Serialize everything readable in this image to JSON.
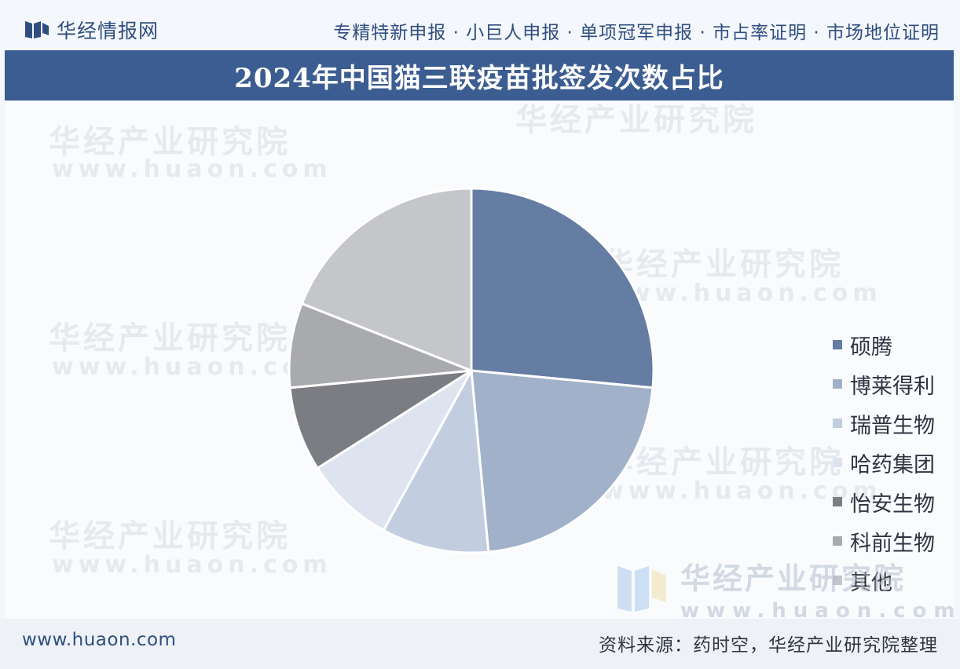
{
  "header": {
    "brand_name": "华经情报网",
    "services": "专精特新申报 · 小巨人申报 · 单项冠军申报 · 市占率证明 · 市场地位证明"
  },
  "watermark": {
    "cn": "华经产业研究院",
    "en": "www.huaon.com"
  },
  "footer": {
    "url": "www.huaon.com",
    "source": "资料来源：药时空，华经产业研究院整理"
  },
  "colors": {
    "title_bar": "#3c5d91",
    "brand": "#2f4e7f"
  },
  "chart_data": {
    "type": "pie",
    "title": "2024年中国猫三联疫苗批签发次数占比",
    "start_angle_deg": 90,
    "direction": "clockwise",
    "legend_position": "right",
    "series": [
      {
        "name": "硕腾",
        "value": 26.5,
        "color": "#657ca3"
      },
      {
        "name": "博莱得利",
        "value": 22.0,
        "color": "#a1b1ca"
      },
      {
        "name": "瑞普生物",
        "value": 9.5,
        "color": "#c2cde0"
      },
      {
        "name": "哈药集团",
        "value": 8.0,
        "color": "#dde4ef"
      },
      {
        "name": "怡安生物",
        "value": 7.5,
        "color": "#7b7d82"
      },
      {
        "name": "科前生物",
        "value": 7.5,
        "color": "#a8aaae"
      },
      {
        "name": "其他",
        "value": 19.0,
        "color": "#c4c6ca"
      }
    ]
  }
}
